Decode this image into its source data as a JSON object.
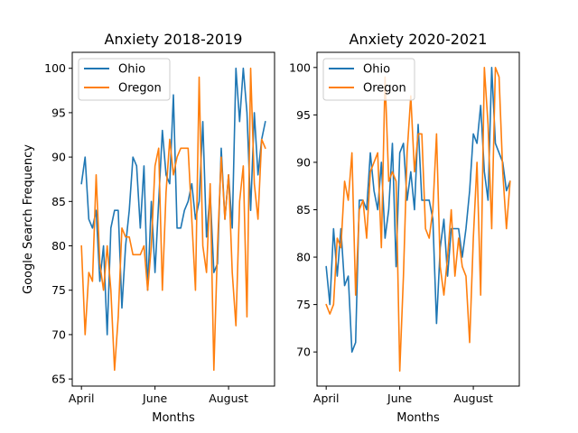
{
  "chart_data": [
    {
      "type": "line",
      "title": "Anxiety 2018-2019",
      "xlabel": "Months",
      "ylabel": "Google Search Frequency",
      "ylim": [
        64.2,
        101.8
      ],
      "yticks": [
        65,
        70,
        75,
        80,
        85,
        90,
        95,
        100
      ],
      "xticks": [
        {
          "index": 0,
          "label": "April"
        },
        {
          "index": 20,
          "label": "June"
        },
        {
          "index": 40,
          "label": "August"
        }
      ],
      "legend": "top-left",
      "series": [
        {
          "name": "Ohio",
          "color": "#1f77b4",
          "values": [
            87,
            90,
            83,
            82,
            84,
            76,
            80,
            70,
            82,
            84,
            84,
            73,
            80,
            84,
            90,
            89,
            82,
            89,
            75,
            85,
            77,
            85,
            93,
            88,
            87,
            97,
            82,
            82,
            84,
            85,
            87,
            83,
            85,
            94,
            81,
            86,
            77,
            78,
            91,
            83,
            88,
            82,
            100,
            94,
            100,
            95,
            84,
            95,
            88,
            92,
            94
          ]
        },
        {
          "name": "Oregon",
          "color": "#ff7f0e",
          "values": [
            80,
            70,
            77,
            76,
            88,
            78,
            75,
            80,
            75,
            66,
            72,
            82,
            81,
            81,
            79,
            79,
            79,
            80,
            75,
            80,
            89,
            91,
            75,
            86,
            92,
            88,
            90,
            91,
            91,
            91,
            83,
            75,
            99,
            80,
            77,
            87,
            66,
            80,
            90,
            83,
            88,
            77,
            71,
            85,
            89,
            72,
            100,
            87,
            83,
            92,
            91
          ]
        }
      ]
    },
    {
      "type": "line",
      "title": "Anxiety 2020-2021",
      "xlabel": "Months",
      "ylabel": "",
      "ylim": [
        66.4,
        101.6
      ],
      "yticks": [
        70,
        75,
        80,
        85,
        90,
        95,
        100
      ],
      "xticks": [
        {
          "index": 0,
          "label": "April"
        },
        {
          "index": 20,
          "label": "June"
        },
        {
          "index": 40,
          "label": "August"
        }
      ],
      "legend": "top-left",
      "series": [
        {
          "name": "Ohio",
          "color": "#1f77b4",
          "values": [
            79,
            75,
            83,
            78,
            83,
            77,
            78,
            70,
            71,
            86,
            86,
            85,
            91,
            87,
            85,
            90,
            82,
            85,
            92,
            79,
            91,
            92,
            86,
            89,
            85,
            94,
            86,
            86,
            86,
            84,
            73,
            81,
            84,
            78,
            83,
            83,
            83,
            80,
            83,
            87,
            93,
            92,
            96,
            89,
            86,
            100,
            92,
            91,
            90,
            87,
            88
          ]
        },
        {
          "name": "Oregon",
          "color": "#ff7f0e",
          "values": [
            75,
            74,
            75,
            82,
            81,
            88,
            86,
            91,
            76,
            85,
            86,
            82,
            89,
            90,
            91,
            81,
            99,
            88,
            89,
            88,
            68,
            78,
            91,
            97,
            89,
            93,
            93,
            83,
            82,
            85,
            93,
            79,
            76,
            80,
            85,
            78,
            82,
            79,
            78,
            71,
            82,
            90,
            76,
            100,
            94,
            83,
            100,
            99,
            89,
            83,
            88
          ]
        }
      ]
    }
  ]
}
